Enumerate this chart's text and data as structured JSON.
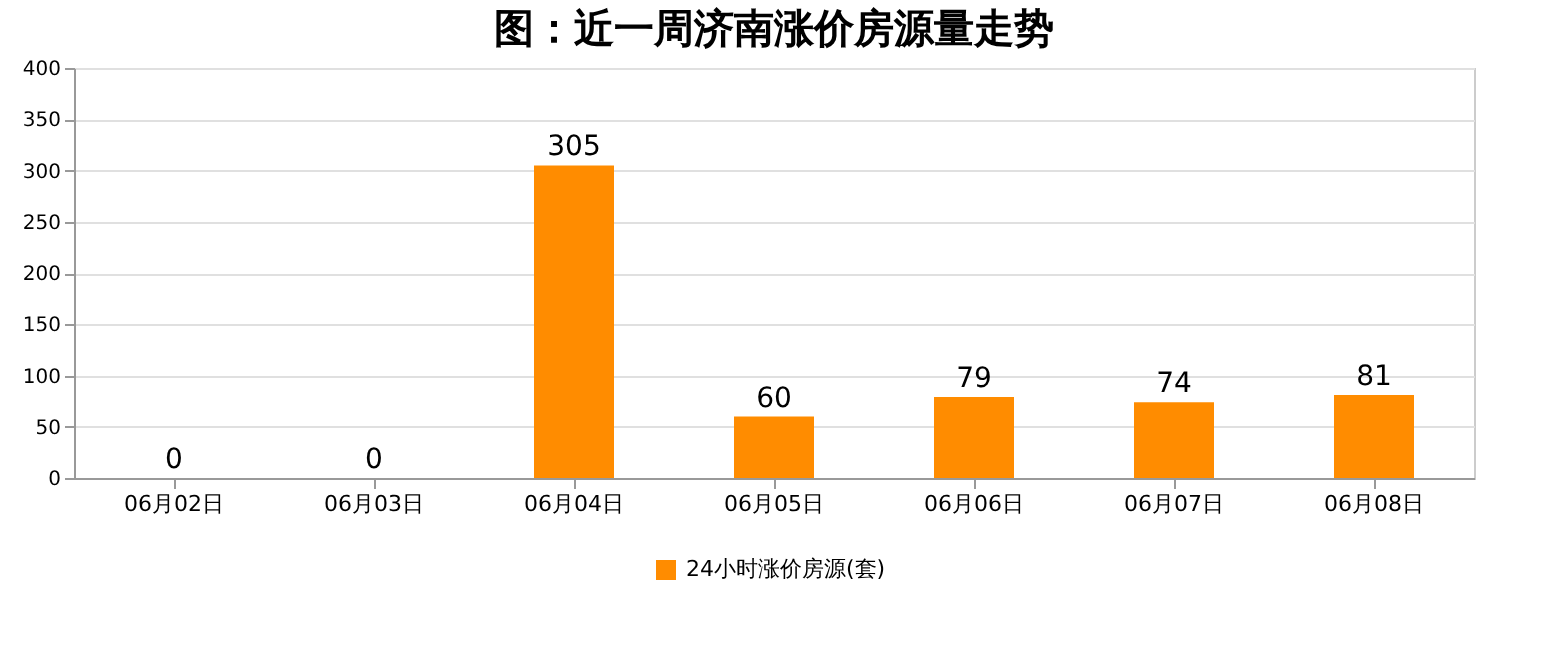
{
  "chart_data": {
    "type": "bar",
    "title": "图：近一周济南涨价房源量走势",
    "categories": [
      "06月02日",
      "06月03日",
      "06月04日",
      "06月05日",
      "06月06日",
      "06月07日",
      "06月08日"
    ],
    "series": [
      {
        "name": "24小时涨价房源(套)",
        "color": "#ff8c00",
        "values": [
          0,
          0,
          305,
          60,
          79,
          74,
          81
        ]
      }
    ],
    "ylim": [
      0,
      400
    ],
    "yticks": [
      0,
      50,
      100,
      150,
      200,
      250,
      300,
      350,
      400
    ],
    "grid": "y",
    "legend": "bottom",
    "data_labels": true
  }
}
